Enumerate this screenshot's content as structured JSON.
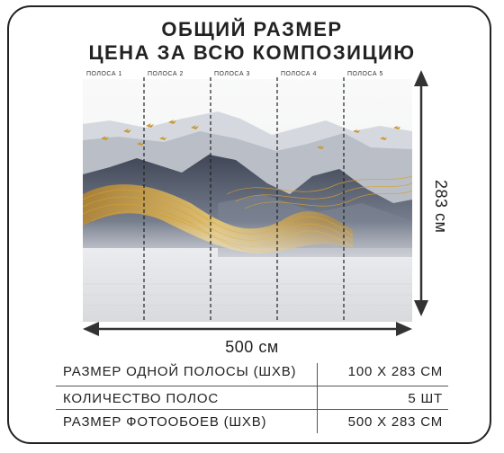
{
  "header": {
    "line1": "ОБЩИЙ РАЗМЕР",
    "line2": "ЦЕНА ЗА ВСЮ КОМПОЗИЦИЮ"
  },
  "strips": [
    "ПОЛОСА 1",
    "ПОЛОСА 2",
    "ПОЛОСА 3",
    "ПОЛОСА 4",
    "ПОЛОСА 5"
  ],
  "dimensions": {
    "width": "500 см",
    "height": "283 см"
  },
  "specs": {
    "strip_size_label": "РАЗМЕР ОДНОЙ ПОЛОСЫ (ШХВ)",
    "strip_size_value": "100 Х 283 СМ",
    "count_label": "КОЛИЧЕСТВО ПОЛОС",
    "count_value": "5 ШТ",
    "total_label": "РАЗМЕР ФОТООБОЕВ (ШХВ)",
    "total_value": "500 Х 283 СМ"
  },
  "colors": {
    "gold": "#d9a12c",
    "mountain_dark": "#4a5161",
    "mountain_light": "#c9ced6",
    "sky": "#f3f4f6"
  }
}
